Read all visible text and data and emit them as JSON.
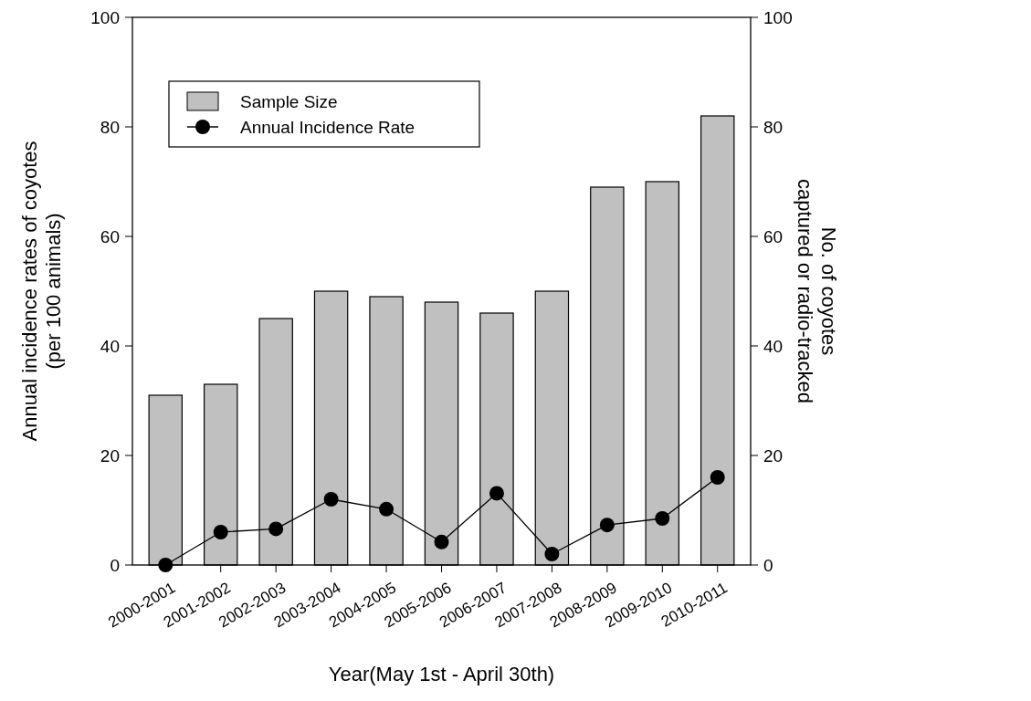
{
  "chart_data": {
    "type": "bar",
    "xlabel": "Year(May 1st - April 30th)",
    "ylabel": "Annual incidence rates of coyotes\n(per 100 animals)",
    "y2label": "No. of coyotes\ncaptured or radio-tracked",
    "categories": [
      "2000-2001",
      "2001-2002",
      "2002-2003",
      "2003-2004",
      "2004-2005",
      "2005-2006",
      "2006-2007",
      "2007-2008",
      "2008-2009",
      "2009-2010",
      "2010-2011"
    ],
    "series": [
      {
        "name": "Sample Size",
        "color": "#c0c0c0",
        "values": [
          31,
          33,
          45,
          50,
          49,
          48,
          46,
          50,
          69,
          70,
          82
        ]
      },
      {
        "name": "Annual Incidence Rate",
        "type": "line",
        "color": "#000000",
        "marker": "circle",
        "values": [
          0,
          6.0,
          6.6,
          12.0,
          10.2,
          4.2,
          13.1,
          2.0,
          7.3,
          8.5,
          16
        ]
      }
    ],
    "ylim": [
      0,
      100
    ],
    "yticks": [
      0,
      20,
      40,
      60,
      80,
      100
    ],
    "y2lim": [
      0,
      100
    ],
    "y2ticks": [
      0,
      20,
      40,
      60,
      80,
      100
    ],
    "legend": "top left",
    "grid": false
  }
}
